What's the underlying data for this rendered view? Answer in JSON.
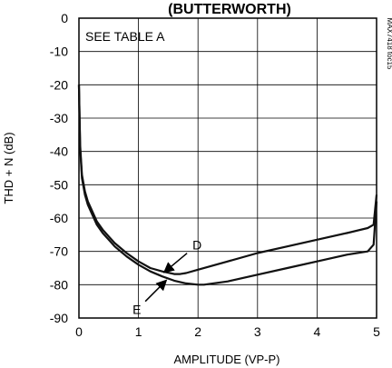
{
  "chart_data": {
    "type": "line",
    "title": "(BUTTERWORTH)",
    "xlabel": "AMPLITUDE (VP-P)",
    "ylabel": "THD + N (dB)",
    "xlim": [
      0,
      5
    ],
    "ylim": [
      -90,
      0
    ],
    "xticks": [
      "0",
      "1",
      "2",
      "3",
      "4",
      "5"
    ],
    "yticks": [
      "0",
      "-10",
      "-20",
      "-30",
      "-40",
      "-50",
      "-60",
      "-70",
      "-80",
      "-90"
    ],
    "grid": true,
    "legend_note": "SEE TABLE A",
    "figure_id": "MAX7418 toc15",
    "series": [
      {
        "name": "D",
        "x": [
          0.0,
          0.02,
          0.05,
          0.1,
          0.15,
          0.2,
          0.3,
          0.4,
          0.5,
          0.6,
          0.8,
          1.0,
          1.2,
          1.4,
          1.6,
          1.7,
          1.8,
          2.0,
          2.5,
          3.0,
          3.5,
          4.0,
          4.5,
          4.85,
          4.95,
          5.0
        ],
        "y": [
          -20,
          -38,
          -47,
          -52,
          -55,
          -57,
          -61,
          -63.5,
          -65.5,
          -67.5,
          -70.5,
          -73,
          -75,
          -76,
          -76.8,
          -76.8,
          -76.5,
          -75.5,
          -73,
          -70.5,
          -68.5,
          -66.5,
          -64.5,
          -63,
          -62,
          -53
        ]
      },
      {
        "name": "E",
        "x": [
          0.0,
          0.02,
          0.05,
          0.1,
          0.15,
          0.2,
          0.3,
          0.4,
          0.5,
          0.6,
          0.8,
          1.0,
          1.2,
          1.4,
          1.6,
          1.8,
          2.0,
          2.1,
          2.5,
          3.0,
          3.5,
          4.0,
          4.5,
          4.85,
          4.95,
          5.0
        ],
        "y": [
          -20,
          -39,
          -48,
          -53,
          -56,
          -58,
          -62,
          -64.5,
          -66.5,
          -68.5,
          -71.5,
          -74,
          -76,
          -77.5,
          -78.8,
          -79.6,
          -80,
          -80,
          -79,
          -77,
          -75,
          -73,
          -71,
          -70,
          -68,
          -55
        ]
      }
    ],
    "annotations": [
      {
        "text": "D",
        "series": "D",
        "at_x": 1.45,
        "at_y": -76
      },
      {
        "text": "E",
        "series": "E",
        "at_x": 1.45,
        "at_y": -79
      }
    ]
  }
}
